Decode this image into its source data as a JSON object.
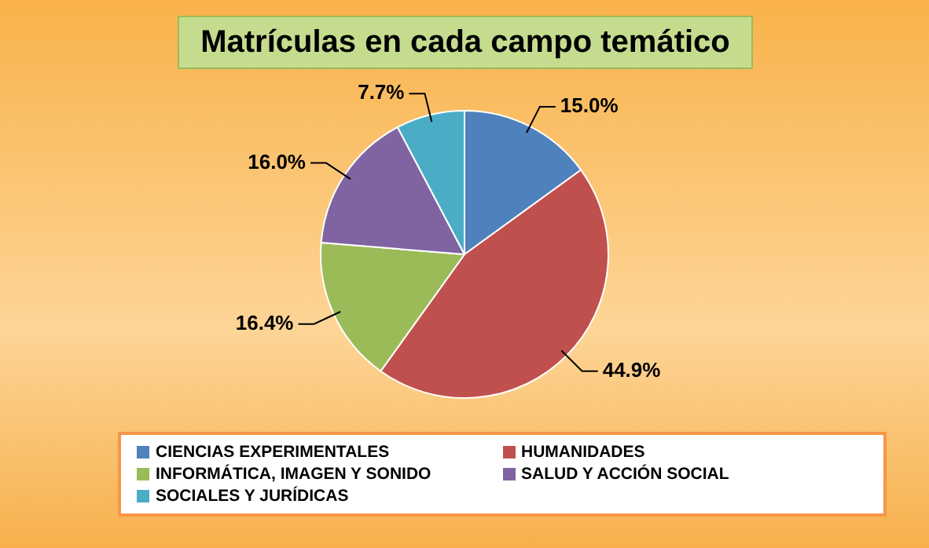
{
  "chart_data": {
    "type": "pie",
    "title": "Matrículas en cada campo temático",
    "categories": [
      "CIENCIAS EXPERIMENTALES",
      "HUMANIDADES",
      "INFORMÁTICA, IMAGEN Y SONIDO",
      "SALUD Y ACCIÓN SOCIAL",
      "SOCIALES Y JURÍDICAS"
    ],
    "values": [
      15.0,
      44.9,
      16.4,
      16.0,
      7.7
    ],
    "colors": [
      "#4f81bd",
      "#c0504d",
      "#9bbb59",
      "#8064a2",
      "#4bacc6"
    ],
    "value_labels": [
      "15.0%",
      "44.9%",
      "16.4%",
      "16.0%",
      "7.7%"
    ],
    "legend": "bottom"
  }
}
